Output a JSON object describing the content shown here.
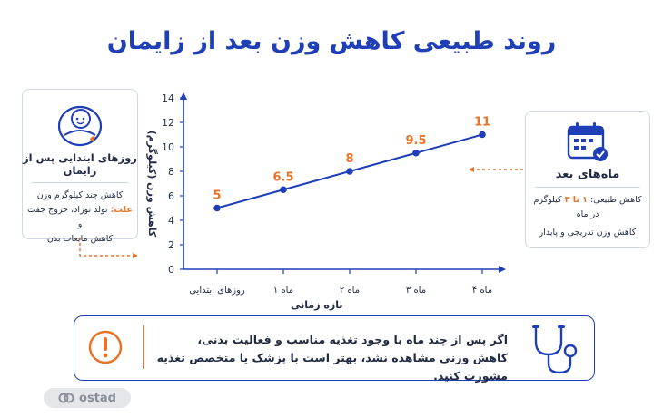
{
  "title": "روند طبیعی کاهش وزن بعد از زایمان",
  "left_card": {
    "icon": "baby-icon",
    "heading": "روزهای ابتدایی پس از زایمان",
    "line1": "کاهش چند کیلوگرم وزن",
    "cause_label": "علت:",
    "cause_text": " تولد نوزاد، خروج جفت و",
    "line3": "کاهش مایعات بدن"
  },
  "right_card": {
    "icon": "calendar-check-icon",
    "heading": "ماه‌های بعد",
    "line1_prefix": "کاهش طبیعی: ",
    "line1_highlight": "۱ تا ۳",
    "line1_suffix": " کیلوگرم در ماه",
    "line2": "کاهش وزن تدریجی و پایدار"
  },
  "chart_data": {
    "type": "line",
    "categories": [
      "روزهای ابتدایی",
      "ماه ۱",
      "ماه ۲",
      "ماه ۳",
      "ماه ۴"
    ],
    "values": [
      5,
      6.5,
      8,
      9.5,
      11
    ],
    "data_labels": [
      "5",
      "6.5",
      "8",
      "9.5",
      "11"
    ],
    "ylabel": "کاهش وزن (کیلوگرم)",
    "xlabel": "بازه زمانی",
    "ylim": [
      0,
      14
    ],
    "yticks": [
      0,
      2,
      4,
      6,
      8,
      10,
      12,
      14
    ],
    "grid": false,
    "colors": {
      "line": "#1f3fb8",
      "label": "#e8742a",
      "axis": "#1f3fb8"
    }
  },
  "note": {
    "line1": "اگر پس از چند ماه با وجود تغذیه مناسب و فعالیت بدنی،",
    "line2": "کاهش وزنی مشاهده نشد، بهتر است با پزشک یا متخصص تغذیه مشورت کنید.",
    "left_icon": "warning-icon",
    "right_icon": "stethoscope-icon"
  },
  "logo": {
    "text": "ostad"
  }
}
